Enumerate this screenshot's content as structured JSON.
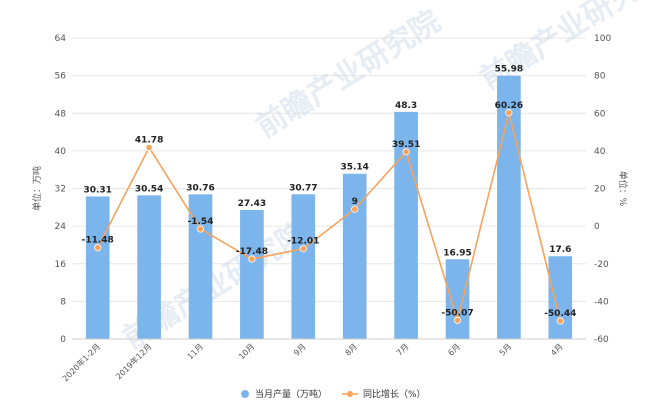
{
  "chart_data": {
    "type": "bar",
    "categories": [
      "2020年1-2月",
      "2019年12月",
      "11月",
      "10月",
      "9月",
      "8月",
      "7月",
      "6月",
      "5月",
      "4月"
    ],
    "series": [
      {
        "name": "当月产量（万吨）",
        "type": "bar",
        "axis": "left",
        "color": "#7cb5ec",
        "values": [
          30.31,
          30.54,
          30.76,
          27.43,
          30.77,
          35.14,
          48.3,
          16.95,
          55.98,
          17.6
        ],
        "labels": [
          "30.31",
          "30.54",
          "30.76",
          "27.43",
          "30.77",
          "35.14",
          "48.3",
          "16.95",
          "55.98",
          "17.6"
        ]
      },
      {
        "name": "同比增长（%）",
        "type": "line",
        "axis": "right",
        "color": "#f7a35c",
        "values": [
          -11.48,
          41.78,
          -1.54,
          -17.48,
          -12.01,
          9,
          39.51,
          -50.07,
          60.26,
          -50.44
        ],
        "labels": [
          "-11.48",
          "41.78",
          "-1.54",
          "-17.48",
          "-12.01",
          "9",
          "39.51",
          "-50.07",
          "60.26",
          "-50.44"
        ]
      }
    ],
    "ylabel": "单位：万吨",
    "ylabel_right": "单位：%",
    "ylim": [
      0,
      64
    ],
    "yticks": [
      0,
      8,
      16,
      24,
      32,
      40,
      48,
      56,
      64
    ],
    "ylim_right": [
      -60,
      100
    ],
    "yticks_right": [
      -60,
      -40,
      -20,
      0,
      20,
      40,
      60,
      80,
      100
    ],
    "grid": true,
    "legend_position": "bottom-center"
  },
  "watermark": {
    "text": "前瞻产业研究院"
  }
}
